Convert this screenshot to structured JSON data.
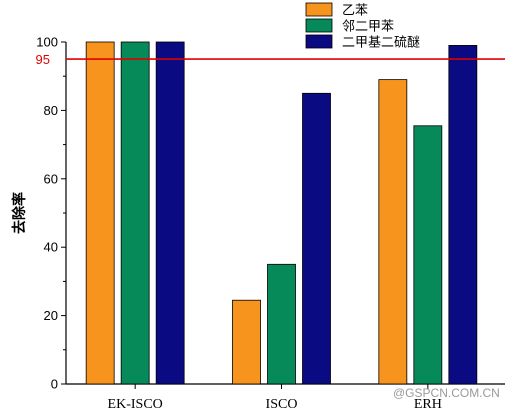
{
  "chart_data": {
    "type": "bar",
    "categories": [
      "EK-ISCO",
      "ISCO",
      "ERH"
    ],
    "series": [
      {
        "name": "乙苯",
        "color": "#f7941d",
        "values": [
          100,
          24.5,
          89
        ]
      },
      {
        "name": "邻二甲苯",
        "color": "#078a5a",
        "values": [
          100,
          35,
          75.5
        ]
      },
      {
        "name": "二甲基二硫醚",
        "color": "#0a0a82",
        "values": [
          100,
          85,
          99
        ]
      }
    ],
    "ylabel": "去除率",
    "ylim": [
      0,
      100
    ],
    "yticks": [
      0,
      20,
      40,
      60,
      80,
      100
    ],
    "reference_line": {
      "value": 95,
      "label": "95",
      "color": "#e00000"
    },
    "legend_position": "top-right",
    "grid": false
  },
  "watermark": "@GSPCN.COM.CN"
}
